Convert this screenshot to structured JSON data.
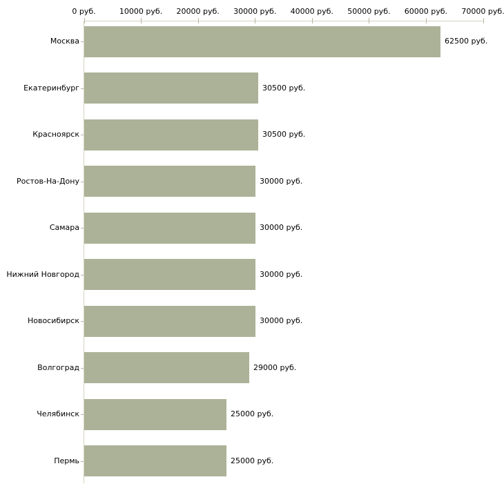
{
  "chart_data": {
    "type": "bar",
    "orientation": "horizontal",
    "title": "",
    "xlabel": "",
    "ylabel": "",
    "categories": [
      "Москва",
      "Екатеринбург",
      "Красноярск",
      "Ростов-На-Дону",
      "Самара",
      "Нижний Новгород",
      "Новосибирск",
      "Волгоград",
      "Челябинск",
      "Пермь"
    ],
    "values": [
      62500,
      30500,
      30500,
      30000,
      30000,
      30000,
      30000,
      29000,
      25000,
      25000
    ],
    "value_labels": [
      "62500 руб.",
      "30500 руб.",
      "30500 руб.",
      "30000 руб.",
      "30000 руб.",
      "30000 руб.",
      "30000 руб.",
      "29000 руб.",
      "25000 руб.",
      "25000 руб."
    ],
    "x_axis": {
      "position": "top",
      "min": 0,
      "max": 70000,
      "tick_step": 10000,
      "tick_values": [
        0,
        10000,
        20000,
        30000,
        40000,
        50000,
        60000,
        70000
      ],
      "tick_labels": [
        "0 руб.",
        "10000 руб.",
        "20000 руб.",
        "30000 руб.",
        "40000 руб.",
        "50000 руб.",
        "60000 руб.",
        "70000 руб."
      ]
    },
    "grid": false,
    "legend": false,
    "colors": {
      "bar": "#acb298",
      "axis_line": "#d4d1bf",
      "tick_mark": "#b8b5a1",
      "text": "#000000",
      "background": "#ffffff"
    }
  }
}
